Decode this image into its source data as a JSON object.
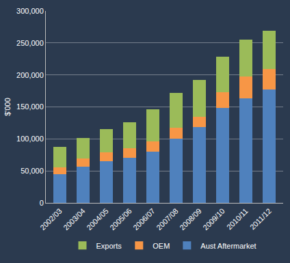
{
  "chart_data": {
    "type": "bar",
    "stacked": true,
    "y_label": "$'000",
    "categories": [
      "2002/03",
      "2003/04",
      "2004/05",
      "2005/06",
      "2006/07",
      "2007/08",
      "2008/09",
      "2009/10",
      "2010/11",
      "2011/12"
    ],
    "series": [
      {
        "name": "Aust Aftermarket",
        "color": "#4f81bd",
        "values": [
          45000,
          57000,
          65000,
          70000,
          80000,
          100000,
          118000,
          148000,
          163000,
          177000
        ]
      },
      {
        "name": "OEM",
        "color": "#f79646",
        "values": [
          10000,
          12000,
          14000,
          15000,
          16000,
          17000,
          17000,
          25000,
          35000,
          32000
        ]
      },
      {
        "name": "Exports",
        "color": "#9bbb59",
        "values": [
          33000,
          32000,
          36000,
          41000,
          50000,
          55000,
          57000,
          55000,
          57000,
          60000
        ]
      }
    ],
    "ylim": [
      0,
      300000
    ],
    "yticks": [
      0,
      {
        "value": 50000,
        "label": "50,000"
      },
      {
        "value": 100000,
        "label": "100,000"
      },
      {
        "value": 150000,
        "label": "150,000"
      },
      {
        "value": 200000,
        "label": "200,000"
      },
      {
        "value": 250000,
        "label": "250,000"
      },
      {
        "value": 300000,
        "label": "300,000"
      }
    ],
    "grid": true,
    "legend": "bottom"
  }
}
